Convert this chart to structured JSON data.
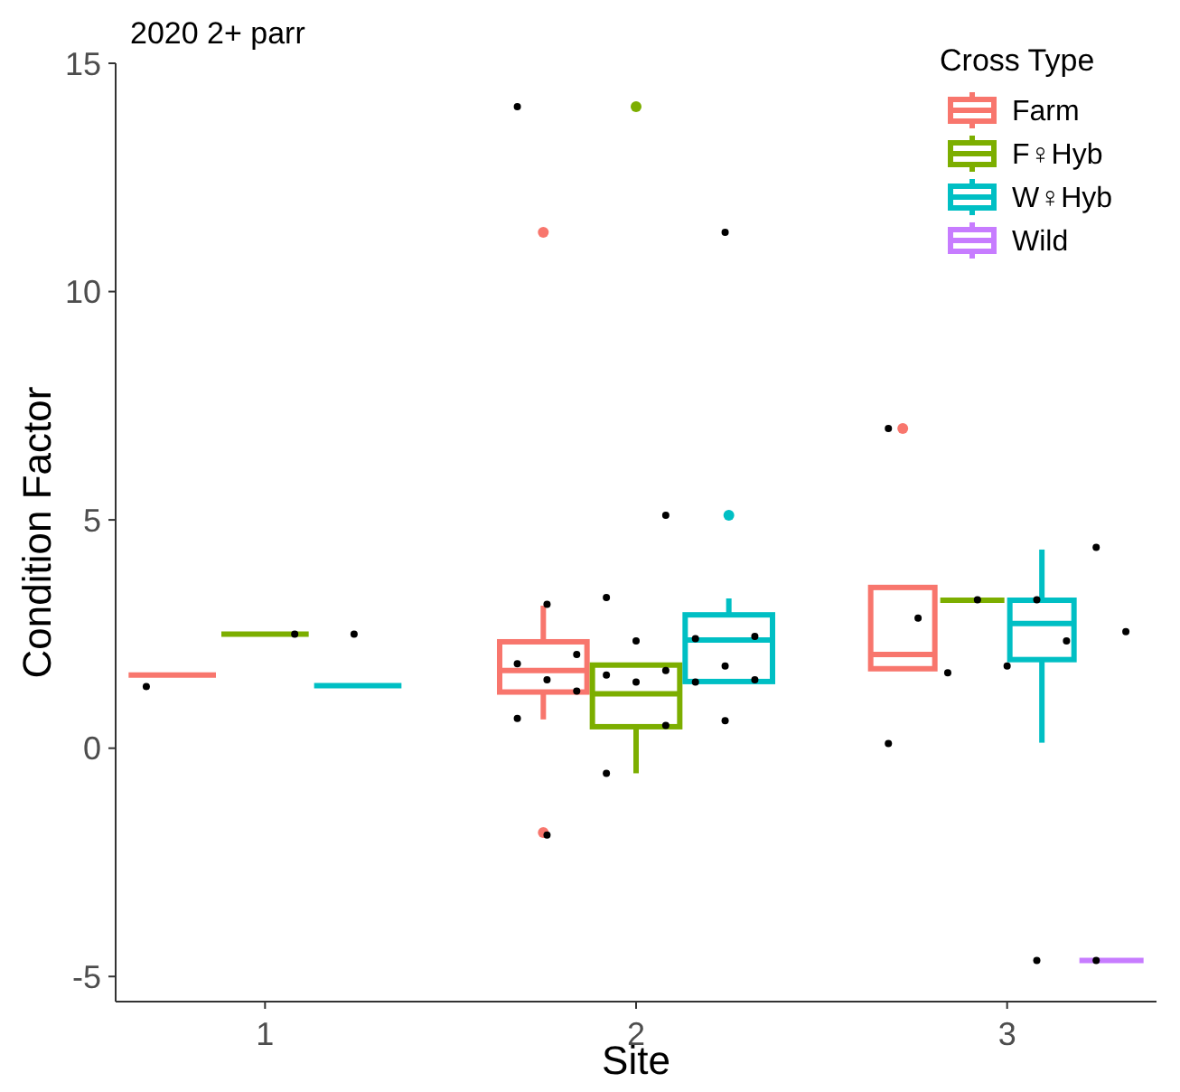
{
  "chart_data": {
    "type": "box",
    "title": "2020 2+ parr",
    "xlabel": "Site",
    "ylabel": "Condition Factor",
    "legend_title": "Cross Type",
    "legend": "top right",
    "grid": false,
    "categories": [
      "1",
      "2",
      "3"
    ],
    "ylim": [
      -5.55,
      15
    ],
    "yticks": [
      -5,
      0,
      5,
      10,
      15
    ],
    "series": [
      {
        "name": "Farm",
        "color": "#f8766d",
        "boxes": [
          {
            "low": 1.6,
            "q1": 1.6,
            "median": 1.6,
            "q3": 1.6,
            "high": 1.6
          },
          {
            "low": 0.63,
            "q1": 1.23,
            "median": 1.7,
            "q3": 2.33,
            "high": 3.12,
            "outliers": [
              11.3,
              -1.85
            ]
          },
          {
            "low": 1.74,
            "q1": 1.74,
            "median": 2.05,
            "q3": 3.52,
            "high": 3.52,
            "outliers": [
              7.0
            ]
          }
        ]
      },
      {
        "name": "F♀Hyb",
        "color": "#7cae00",
        "boxes": [
          {
            "low": 2.5,
            "q1": 2.5,
            "median": 2.5,
            "q3": 2.5,
            "high": 2.5
          },
          {
            "low": -0.55,
            "q1": 0.47,
            "median": 1.19,
            "q3": 1.82,
            "high": 1.82,
            "outliers": [
              14.05
            ]
          },
          {
            "low": 3.24,
            "q1": 3.24,
            "median": 3.24,
            "q3": 3.24,
            "high": 3.24
          }
        ]
      },
      {
        "name": "W♀Hyb",
        "color": "#00bfc4",
        "boxes": [
          {
            "low": 1.37,
            "q1": 1.37,
            "median": 1.37,
            "q3": 1.37,
            "high": 1.37
          },
          {
            "low": 1.44,
            "q1": 1.46,
            "median": 2.37,
            "q3": 2.92,
            "high": 3.28,
            "outliers": [
              5.1
            ]
          },
          {
            "low": 0.12,
            "q1": 1.94,
            "median": 2.73,
            "q3": 3.24,
            "high": 4.35
          }
        ]
      },
      {
        "name": "Wild",
        "color": "#c77cff",
        "boxes": [
          null,
          null,
          {
            "low": -4.65,
            "q1": -4.65,
            "median": -4.65,
            "q3": -4.65,
            "high": -4.65
          }
        ]
      },
      {
        "type": "scatter",
        "color": "#000000",
        "marker": "circle",
        "x": [
          "1",
          "1",
          "1",
          "2",
          "2",
          "2",
          "2",
          "2",
          "2",
          "2",
          "2",
          "2",
          "2",
          "2",
          "2",
          "2",
          "2",
          "2",
          "2",
          "2",
          "2",
          "2",
          "2",
          "2",
          "2",
          "2",
          "3",
          "3",
          "3",
          "3",
          "3",
          "3",
          "3",
          "3",
          "3",
          "3",
          "3",
          "3"
        ],
        "values": [
          1.35,
          2.5,
          2.5,
          14.05,
          11.3,
          5.1,
          3.3,
          3.15,
          2.45,
          2.4,
          2.35,
          2.05,
          1.85,
          1.8,
          1.7,
          1.6,
          1.5,
          1.5,
          1.45,
          1.45,
          1.25,
          0.65,
          0.6,
          0.5,
          -0.55,
          -1.9,
          7.0,
          4.4,
          3.25,
          3.25,
          2.85,
          2.55,
          2.35,
          1.8,
          1.65,
          0.1,
          -4.65,
          -4.65
        ]
      }
    ]
  }
}
